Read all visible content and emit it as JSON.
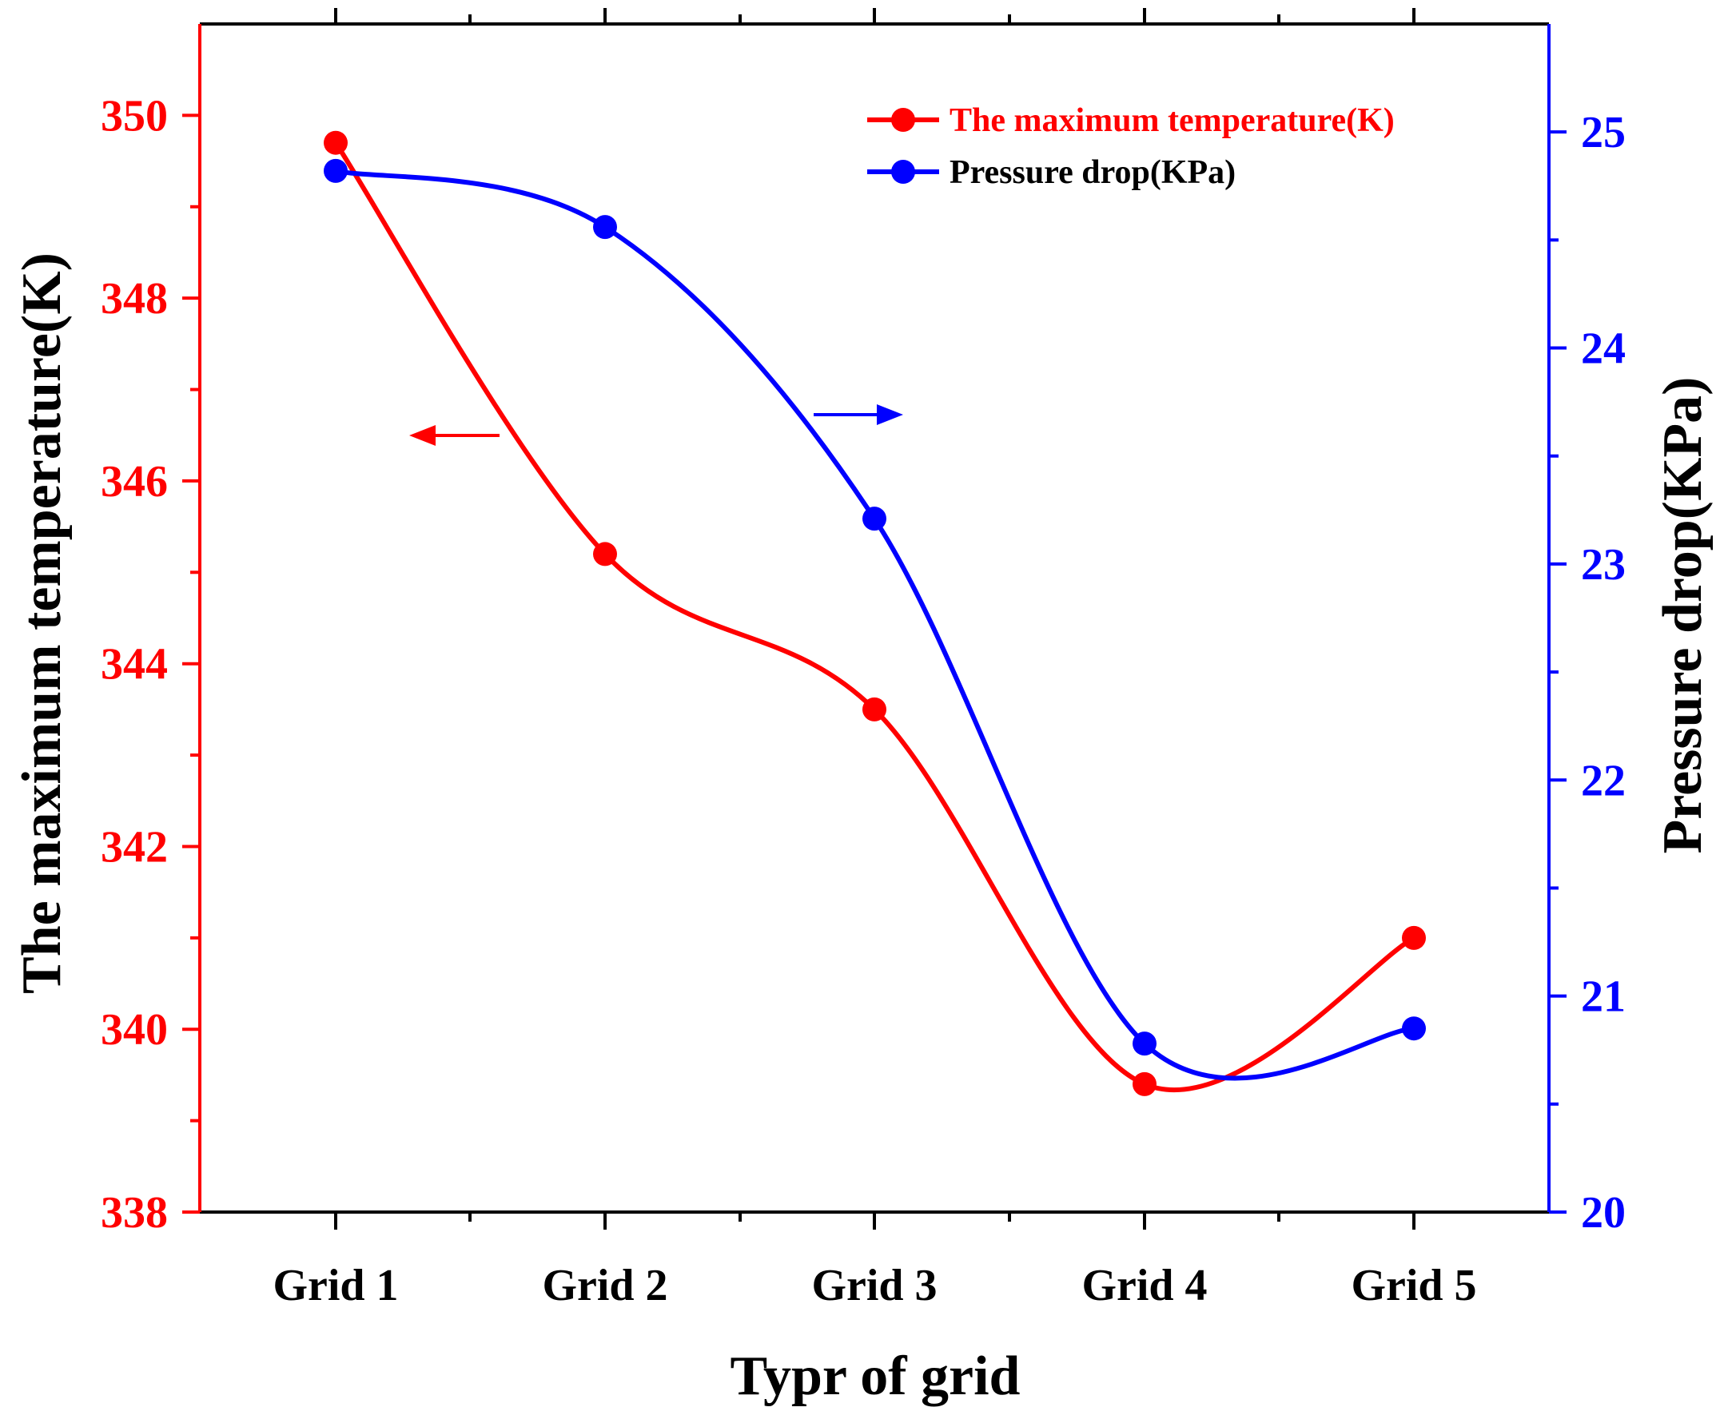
{
  "colors": {
    "left_series": "#ff0000",
    "right_series": "#0000ff",
    "frame": "#000000"
  },
  "chart_data": {
    "type": "line",
    "categories": [
      "Grid 1",
      "Grid 2",
      "Grid 3",
      "Grid 4",
      "Grid 5"
    ],
    "xlabel": "Typr of grid",
    "series": [
      {
        "name": "The maximum temperature(K)",
        "axis": "left",
        "color": "#ff0000",
        "values": [
          349.7,
          345.2,
          343.5,
          339.4,
          341.0
        ]
      },
      {
        "name": "Pressure drop(KPa)",
        "axis": "right",
        "color": "#0000ff",
        "values": [
          24.82,
          24.56,
          23.21,
          20.78,
          20.85
        ]
      }
    ],
    "y_left": {
      "label": "The maximum temperature(K)",
      "lim": [
        338,
        351
      ],
      "ticks": [
        "338",
        "340",
        "342",
        "344",
        "346",
        "348",
        "350"
      ]
    },
    "y_right": {
      "label": "Pressure drop(KPa)",
      "lim": [
        20,
        25.5
      ],
      "ticks": [
        "20",
        "21",
        "22",
        "23",
        "24",
        "25"
      ]
    },
    "grid": false,
    "legend_position": "top-right",
    "annotations": [
      {
        "type": "arrow",
        "direction": "left",
        "points_to": "left axis",
        "color": "#ff0000"
      },
      {
        "type": "arrow",
        "direction": "right",
        "points_to": "right axis",
        "color": "#0000ff"
      }
    ]
  }
}
